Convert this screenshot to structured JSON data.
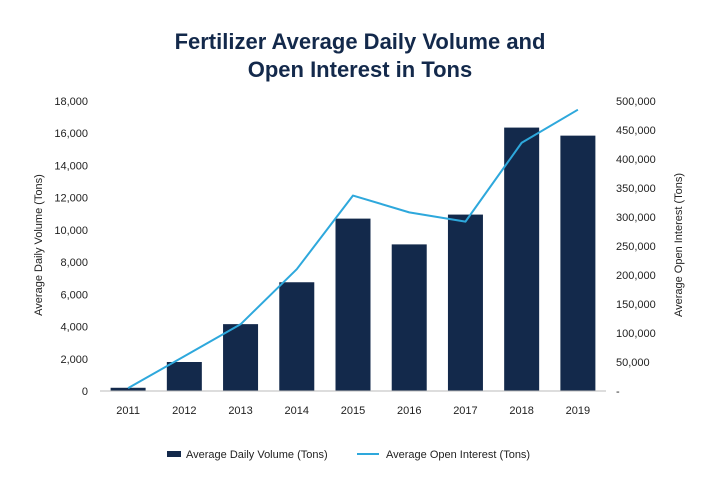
{
  "chart_data": {
    "type": "bar",
    "title_line1": "Fertilizer Average Daily Volume and",
    "title_line2": "Open Interest in Tons",
    "categories": [
      "2011",
      "2012",
      "2013",
      "2014",
      "2015",
      "2016",
      "2017",
      "2018",
      "2019"
    ],
    "series": [
      {
        "name": "Average Daily Volume (Tons)",
        "type": "bar",
        "axis": "left",
        "color": "#13294b",
        "values": [
          200,
          1800,
          4150,
          6750,
          10700,
          9100,
          10950,
          16350,
          15850
        ]
      },
      {
        "name": "Average Open Interest (Tons)",
        "type": "line",
        "axis": "right",
        "color": "#2ea8dc",
        "values": [
          5000,
          60000,
          115000,
          210000,
          337000,
          308000,
          292000,
          428000,
          485000
        ]
      }
    ],
    "ylabel": "Average Daily Volume (Tons)",
    "y2label": "Average Open Interest (Tons)",
    "ylim": [
      0,
      18000
    ],
    "y2lim": [
      0,
      500000
    ],
    "yticks": [
      0,
      2000,
      4000,
      6000,
      8000,
      10000,
      12000,
      14000,
      16000,
      18000
    ],
    "yticklabels": [
      "0",
      "2,000",
      "4,000",
      "6,000",
      "8,000",
      "10,000",
      "12,000",
      "14,000",
      "16,000",
      "18,000"
    ],
    "y2ticks": [
      0,
      50000,
      100000,
      150000,
      200000,
      250000,
      300000,
      350000,
      400000,
      450000,
      500000
    ],
    "y2ticklabels": [
      "-",
      "50,000",
      "100,000",
      "150,000",
      "200,000",
      "250,000",
      "300,000",
      "350,000",
      "400,000",
      "450,000",
      "500,000"
    ],
    "grid": false,
    "legend": "bottom"
  }
}
